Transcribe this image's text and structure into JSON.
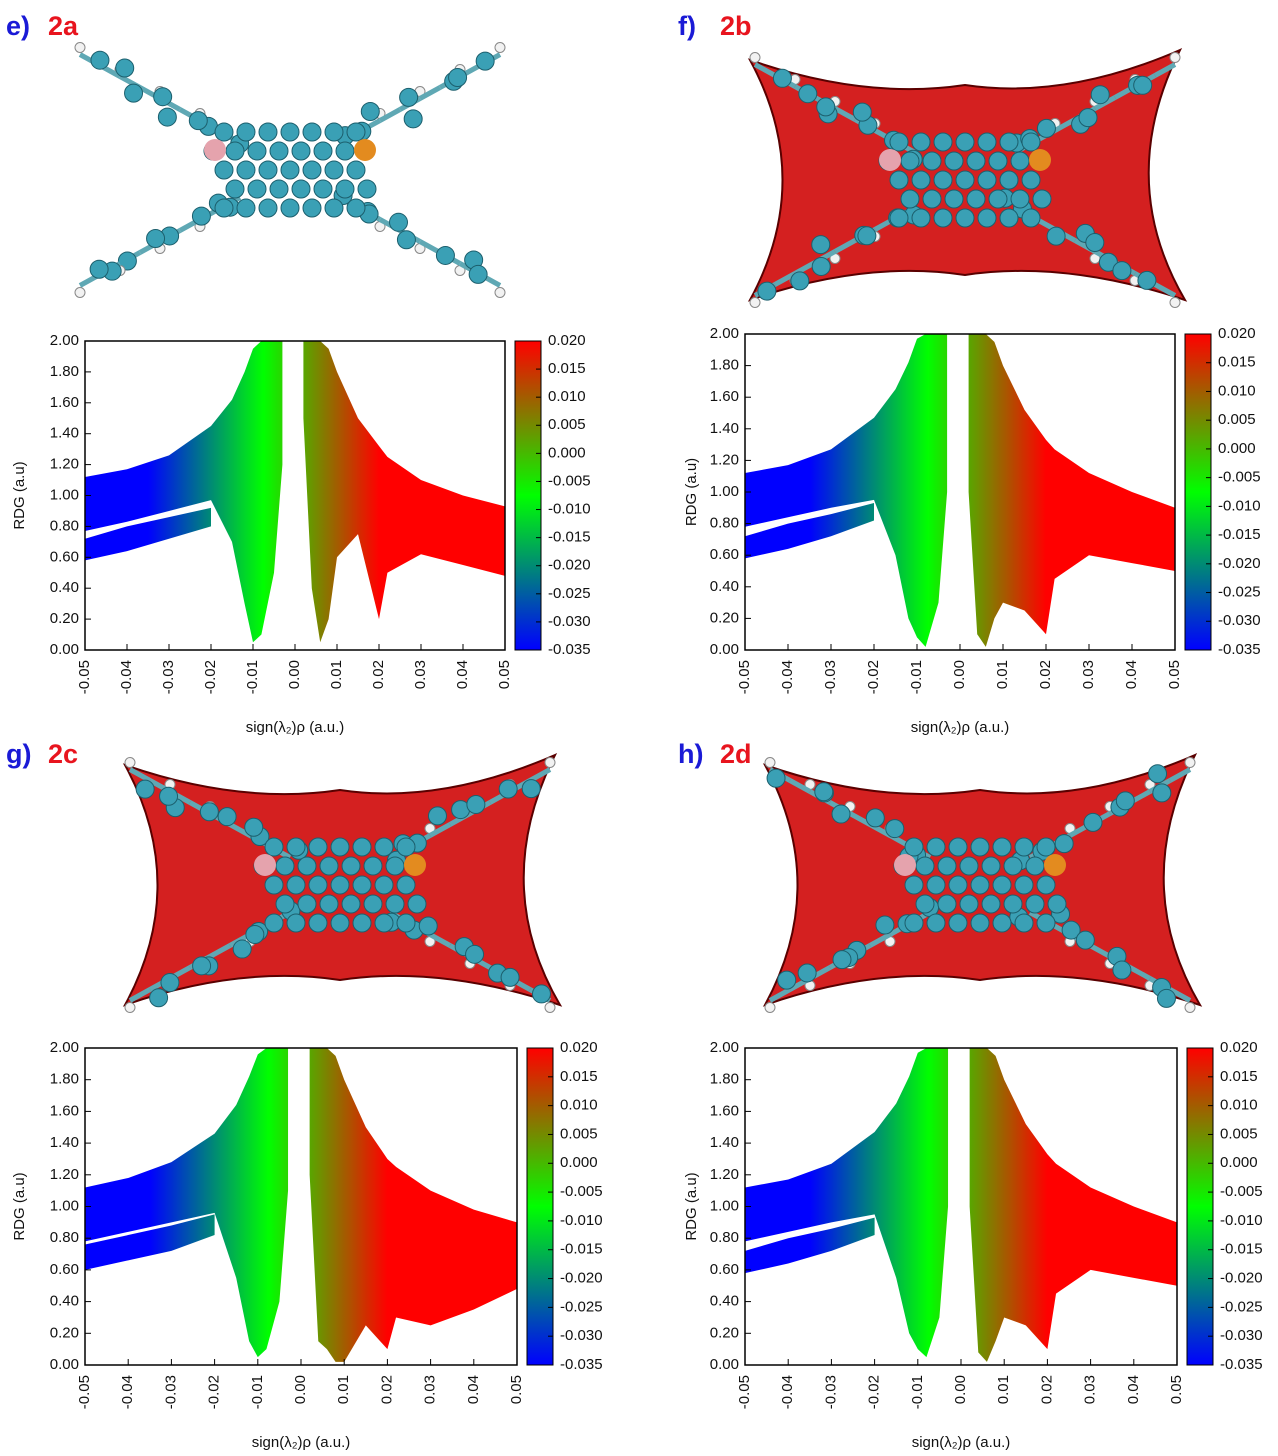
{
  "chart_data": [
    {
      "type": "scatter",
      "panel": "e)",
      "title": "2a",
      "xlabel": "sign(λ₂)ρ (a.u.)",
      "ylabel": "RDG (a.u)",
      "xlim": [
        -0.05,
        0.05
      ],
      "ylim": [
        0,
        2
      ],
      "xticks": [
        -0.05,
        -0.04,
        -0.03,
        -0.02,
        -0.01,
        {
          "value": 0,
          "label": "0.00"
        },
        0.01,
        0.02,
        0.03,
        0.04,
        0.05
      ],
      "yticks": [
        {
          "value": 0,
          "label": "0.00"
        },
        {
          "value": 0.2,
          "label": "0.20"
        },
        {
          "value": 0.4,
          "label": "0.40"
        },
        {
          "value": 0.6,
          "label": "0.60"
        },
        {
          "value": 0.8,
          "label": "0.80"
        },
        {
          "value": 1,
          "label": "1.00"
        },
        {
          "value": 1.2,
          "label": "1.20"
        },
        {
          "value": 1.4,
          "label": "1.40"
        },
        {
          "value": 1.6,
          "label": "1.60"
        },
        {
          "value": 1.8,
          "label": "1.80"
        },
        {
          "value": 2,
          "label": "2.00"
        }
      ],
      "colorbar": {
        "lim": [
          -0.035,
          0.02
        ],
        "colors": [
          "#0000ff",
          "#00ff00",
          "#ff0000"
        ],
        "ticks": [
          -0.035,
          {
            "value": -0.03,
            "label": "-0.030"
          },
          -0.025,
          {
            "value": -0.02,
            "label": "-0.020"
          },
          -0.015,
          {
            "value": -0.01,
            "label": "-0.010"
          },
          -0.005,
          {
            "value": 0,
            "label": "0.000"
          },
          0.005,
          {
            "value": 0.01,
            "label": "0.010"
          },
          0.015,
          {
            "value": 0.02,
            "label": "0.020"
          }
        ]
      },
      "bands": [
        {
          "x": [
            -0.05,
            -0.04,
            -0.03,
            -0.02,
            -0.015,
            -0.012,
            -0.01,
            -0.008,
            -0.005,
            -0.003
          ],
          "upper": [
            1.12,
            1.17,
            1.26,
            1.45,
            1.62,
            1.8,
            1.95,
            2,
            2,
            2
          ],
          "lower": [
            0.77,
            0.83,
            0.9,
            0.97,
            0.7,
            0.3,
            0.05,
            0.1,
            0.5,
            1.2
          ]
        },
        {
          "x": [
            -0.05,
            -0.04,
            -0.03,
            -0.02
          ],
          "upper": [
            0.72,
            0.8,
            0.86,
            0.92
          ],
          "lower": [
            0.58,
            0.64,
            0.72,
            0.8
          ]
        },
        {
          "x": [
            0.002,
            0.004,
            0.006,
            0.008,
            0.01,
            0.015,
            0.02,
            0.022,
            0.03,
            0.04,
            0.05
          ],
          "upper": [
            2,
            2,
            2,
            1.95,
            1.8,
            1.5,
            1.32,
            1.25,
            1.1,
            1,
            0.93
          ],
          "lower": [
            1.5,
            0.4,
            0.05,
            0.2,
            0.6,
            0.75,
            0.2,
            0.5,
            0.62,
            0.55,
            0.48
          ]
        }
      ]
    },
    {
      "type": "scatter",
      "panel": "f)",
      "title": "2b",
      "xlabel": "sign(λ₂)ρ (a.u.)",
      "ylabel": "RDG (a.u)",
      "xlim": [
        -0.05,
        0.05
      ],
      "ylim": [
        0,
        2
      ],
      "xticks": [
        -0.05,
        -0.04,
        -0.03,
        -0.02,
        -0.01,
        {
          "value": 0,
          "label": "0.00"
        },
        0.01,
        0.02,
        0.03,
        0.04,
        0.05
      ],
      "yticks": [
        {
          "value": 0,
          "label": "0.00"
        },
        {
          "value": 0.2,
          "label": "0.20"
        },
        {
          "value": 0.4,
          "label": "0.40"
        },
        {
          "value": 0.6,
          "label": "0.60"
        },
        {
          "value": 0.8,
          "label": "0.80"
        },
        {
          "value": 1,
          "label": "1.00"
        },
        {
          "value": 1.2,
          "label": "1.20"
        },
        {
          "value": 1.4,
          "label": "1.40"
        },
        {
          "value": 1.6,
          "label": "1.60"
        },
        {
          "value": 1.8,
          "label": "1.80"
        },
        {
          "value": 2,
          "label": "2.00"
        }
      ],
      "colorbar": {
        "lim": [
          -0.035,
          0.02
        ],
        "colors": [
          "#0000ff",
          "#00ff00",
          "#ff0000"
        ],
        "ticks": [
          -0.035,
          {
            "value": -0.03,
            "label": "-0.030"
          },
          -0.025,
          {
            "value": -0.02,
            "label": "-0.020"
          },
          -0.015,
          {
            "value": -0.01,
            "label": "-0.010"
          },
          -0.005,
          {
            "value": 0,
            "label": "0.000"
          },
          0.005,
          {
            "value": 0.01,
            "label": "0.010"
          },
          0.015,
          {
            "value": 0.02,
            "label": "0.020"
          }
        ]
      },
      "bands": [
        {
          "x": [
            -0.05,
            -0.04,
            -0.03,
            -0.02,
            -0.015,
            -0.012,
            -0.01,
            -0.008,
            -0.005,
            -0.003
          ],
          "upper": [
            1.12,
            1.17,
            1.27,
            1.47,
            1.65,
            1.82,
            1.97,
            2,
            2,
            2
          ],
          "lower": [
            0.78,
            0.84,
            0.9,
            0.95,
            0.6,
            0.2,
            0.08,
            0.02,
            0.3,
            1
          ]
        },
        {
          "x": [
            -0.05,
            -0.04,
            -0.03,
            -0.02
          ],
          "upper": [
            0.72,
            0.8,
            0.86,
            0.93
          ],
          "lower": [
            0.58,
            0.64,
            0.72,
            0.82
          ]
        },
        {
          "x": [
            0.002,
            0.004,
            0.006,
            0.008,
            0.01,
            0.015,
            0.02,
            0.022,
            0.03,
            0.04,
            0.05
          ],
          "upper": [
            2,
            2,
            2,
            1.95,
            1.8,
            1.52,
            1.33,
            1.27,
            1.12,
            1,
            0.9
          ],
          "lower": [
            1,
            0.1,
            0.02,
            0.2,
            0.3,
            0.25,
            0.1,
            0.45,
            0.6,
            0.55,
            0.5
          ]
        }
      ]
    },
    {
      "type": "scatter",
      "panel": "g)",
      "title": "2c",
      "xlabel": "sign(λ₂)ρ (a.u.)",
      "ylabel": "RDG (a.u)",
      "xlim": [
        -0.05,
        0.05
      ],
      "ylim": [
        0,
        2
      ],
      "xticks": [
        -0.05,
        -0.04,
        -0.03,
        -0.02,
        -0.01,
        {
          "value": 0,
          "label": "0.00"
        },
        0.01,
        0.02,
        0.03,
        0.04,
        0.05
      ],
      "yticks": [
        {
          "value": 0,
          "label": "0.00"
        },
        {
          "value": 0.2,
          "label": "0.20"
        },
        {
          "value": 0.4,
          "label": "0.40"
        },
        {
          "value": 0.6,
          "label": "0.60"
        },
        {
          "value": 0.8,
          "label": "0.80"
        },
        {
          "value": 1,
          "label": "1.00"
        },
        {
          "value": 1.2,
          "label": "1.20"
        },
        {
          "value": 1.4,
          "label": "1.40"
        },
        {
          "value": 1.6,
          "label": "1.60"
        },
        {
          "value": 1.8,
          "label": "1.80"
        },
        {
          "value": 2,
          "label": "2.00"
        }
      ],
      "colorbar": {
        "lim": [
          -0.035,
          0.02
        ],
        "colors": [
          "#0000ff",
          "#00ff00",
          "#ff0000"
        ],
        "ticks": [
          -0.035,
          {
            "value": -0.03,
            "label": "-0.030"
          },
          -0.025,
          {
            "value": -0.02,
            "label": "-0.020"
          },
          -0.015,
          {
            "value": -0.01,
            "label": "-0.010"
          },
          -0.005,
          {
            "value": 0,
            "label": "0.000"
          },
          0.005,
          {
            "value": 0.01,
            "label": "0.010"
          },
          0.015,
          {
            "value": 0.02,
            "label": "0.020"
          }
        ]
      },
      "bands": [
        {
          "x": [
            -0.05,
            -0.04,
            -0.03,
            -0.02,
            -0.015,
            -0.012,
            -0.01,
            -0.008,
            -0.005,
            -0.003
          ],
          "upper": [
            1.12,
            1.18,
            1.28,
            1.46,
            1.64,
            1.82,
            1.96,
            2,
            2,
            2
          ],
          "lower": [
            0.78,
            0.84,
            0.9,
            0.96,
            0.55,
            0.15,
            0.05,
            0.1,
            0.4,
            1.1
          ]
        },
        {
          "x": [
            -0.05,
            -0.04,
            -0.03,
            -0.02
          ],
          "upper": [
            0.76,
            0.82,
            0.88,
            0.95
          ],
          "lower": [
            0.6,
            0.66,
            0.72,
            0.82
          ]
        },
        {
          "x": [
            0.002,
            0.004,
            0.006,
            0.008,
            0.01,
            0.015,
            0.02,
            0.022,
            0.03,
            0.04,
            0.05
          ],
          "upper": [
            2,
            2,
            2,
            1.95,
            1.8,
            1.5,
            1.3,
            1.25,
            1.1,
            0.98,
            0.9
          ],
          "lower": [
            1.2,
            0.15,
            0.1,
            0.02,
            0.02,
            0.25,
            0.1,
            0.3,
            0.25,
            0.35,
            0.48
          ]
        }
      ]
    },
    {
      "type": "scatter",
      "panel": "h)",
      "title": "2d",
      "xlabel": "sign(λ₂)ρ (a.u.)",
      "ylabel": "RDG (a.u)",
      "xlim": [
        -0.05,
        0.05
      ],
      "ylim": [
        0,
        2
      ],
      "xticks": [
        -0.05,
        -0.04,
        -0.03,
        -0.02,
        -0.01,
        {
          "value": 0,
          "label": "0.00"
        },
        0.01,
        0.02,
        0.03,
        0.04,
        0.05
      ],
      "yticks": [
        {
          "value": 0,
          "label": "0.00"
        },
        {
          "value": 0.2,
          "label": "0.20"
        },
        {
          "value": 0.4,
          "label": "0.40"
        },
        {
          "value": 0.6,
          "label": "0.60"
        },
        {
          "value": 0.8,
          "label": "0.80"
        },
        {
          "value": 1,
          "label": "1.00"
        },
        {
          "value": 1.2,
          "label": "1.20"
        },
        {
          "value": 1.4,
          "label": "1.40"
        },
        {
          "value": 1.6,
          "label": "1.60"
        },
        {
          "value": 1.8,
          "label": "1.80"
        },
        {
          "value": 2,
          "label": "2.00"
        }
      ],
      "colorbar": {
        "lim": [
          -0.035,
          0.02
        ],
        "colors": [
          "#0000ff",
          "#00ff00",
          "#ff0000"
        ],
        "ticks": [
          -0.035,
          {
            "value": -0.03,
            "label": "-0.030"
          },
          -0.025,
          {
            "value": -0.02,
            "label": "-0.020"
          },
          -0.015,
          {
            "value": -0.01,
            "label": "-0.010"
          },
          -0.005,
          {
            "value": 0,
            "label": "0.000"
          },
          0.005,
          {
            "value": 0.01,
            "label": "0.010"
          },
          0.015,
          {
            "value": 0.02,
            "label": "0.020"
          }
        ]
      },
      "bands": [
        {
          "x": [
            -0.05,
            -0.04,
            -0.03,
            -0.02,
            -0.015,
            -0.012,
            -0.01,
            -0.008,
            -0.005,
            -0.003
          ],
          "upper": [
            1.12,
            1.17,
            1.27,
            1.47,
            1.65,
            1.82,
            1.97,
            2,
            2,
            2
          ],
          "lower": [
            0.78,
            0.84,
            0.9,
            0.95,
            0.55,
            0.2,
            0.1,
            0.05,
            0.3,
            1
          ]
        },
        {
          "x": [
            -0.05,
            -0.04,
            -0.03,
            -0.02
          ],
          "upper": [
            0.72,
            0.8,
            0.86,
            0.93
          ],
          "lower": [
            0.58,
            0.64,
            0.72,
            0.82
          ]
        },
        {
          "x": [
            0.002,
            0.004,
            0.006,
            0.008,
            0.01,
            0.015,
            0.02,
            0.022,
            0.03,
            0.04,
            0.05
          ],
          "upper": [
            2,
            2,
            2,
            1.95,
            1.8,
            1.52,
            1.33,
            1.27,
            1.12,
            1,
            0.9
          ],
          "lower": [
            1,
            0.08,
            0.02,
            0.15,
            0.3,
            0.25,
            0.1,
            0.45,
            0.6,
            0.55,
            0.5
          ]
        }
      ]
    }
  ]
}
